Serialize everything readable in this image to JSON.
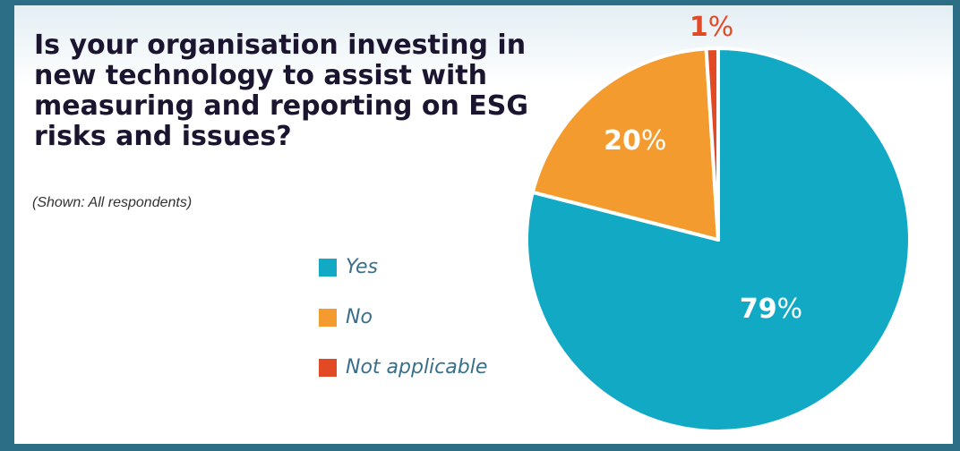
{
  "title": "Is your organisation investing in new technology to assist with measuring and reporting on ESG risks and issues?",
  "subtitle": "(Shown: All respondents)",
  "chart_data": {
    "type": "pie",
    "categories": [
      "Yes",
      "No",
      "Not applicable"
    ],
    "values": [
      79,
      20,
      1
    ],
    "labels": [
      "79%",
      "20%",
      "1%"
    ],
    "colors": [
      "#12a9c4",
      "#f39b2e",
      "#e24a26"
    ],
    "label_colors": [
      "#ffffff",
      "#ffffff",
      "#e24a26"
    ],
    "legend_position": "left"
  }
}
